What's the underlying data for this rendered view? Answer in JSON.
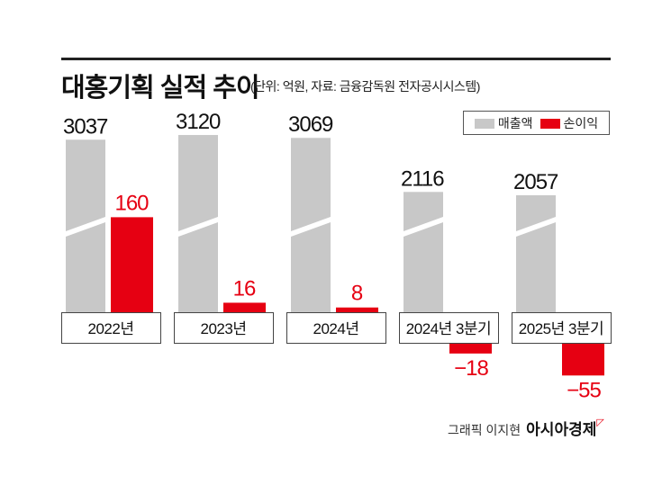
{
  "title": "대홍기획 실적 추이",
  "subtitle": "(단위: 억원, 자료: 금융감독원 전자공시시스템)",
  "credit": "그래픽 이지현",
  "brand": "아시아경제",
  "chart_data": {
    "type": "bar",
    "categories": [
      "2022년",
      "2023년",
      "2024년",
      "2024년 3분기",
      "2025년 3분기"
    ],
    "series": [
      {
        "name": "매출액",
        "color": "#c8c8c8",
        "values": [
          3037,
          3120,
          3069,
          2116,
          2057
        ]
      },
      {
        "name": "손이익",
        "color": "#e60012",
        "values": [
          160,
          16,
          8,
          -18,
          -55
        ]
      }
    ],
    "axis": "broken (revenue bars truncated)",
    "legend": "top-right",
    "grid": false
  }
}
